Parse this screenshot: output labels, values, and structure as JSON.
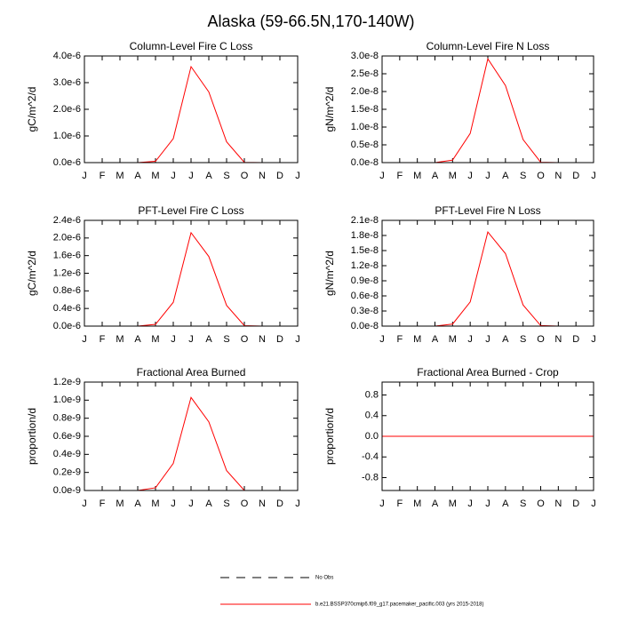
{
  "title": "Alaska (59-66.5N,170-140W)",
  "legend": [
    {
      "label": "No Obs",
      "color": "#000000",
      "dashed": true
    },
    {
      "label": "b.e21.BSSP370cmip6.f09_g17.pacemaker_pacific.003 (yrs 2015-2018)",
      "color": "#ff0000",
      "dashed": false
    }
  ],
  "chart_data": [
    {
      "type": "line",
      "title": "Column-Level Fire C Loss",
      "ylabel": "gC/m^2/d",
      "color": "#ff0000",
      "categories": [
        "J",
        "F",
        "M",
        "A",
        "M",
        "J",
        "J",
        "A",
        "S",
        "O",
        "N",
        "D",
        "J"
      ],
      "values": [
        0,
        0,
        0,
        0,
        5e-08,
        9e-07,
        3.6e-06,
        2.65e-06,
        7.8e-07,
        1e-08,
        0,
        0,
        0
      ],
      "ylim": [
        0,
        4e-06
      ],
      "yticks": [
        {
          "value": 0,
          "label": "0.0e-6"
        },
        {
          "value": 1e-06,
          "label": "1.0e-6"
        },
        {
          "value": 2e-06,
          "label": "2.0e-6"
        },
        {
          "value": 3e-06,
          "label": "3.0e-6"
        },
        {
          "value": 4e-06,
          "label": "4.0e-6"
        }
      ]
    },
    {
      "type": "line",
      "title": "Column-Level Fire N Loss",
      "ylabel": "gN/m^2/d",
      "color": "#ff0000",
      "categories": [
        "J",
        "F",
        "M",
        "A",
        "M",
        "J",
        "J",
        "A",
        "S",
        "O",
        "N",
        "D",
        "J"
      ],
      "values": [
        0,
        0,
        0,
        0,
        7e-10,
        8.2e-09,
        2.92e-08,
        2.17e-08,
        6.5e-09,
        1e-10,
        0,
        0,
        0
      ],
      "ylim": [
        0,
        3e-08
      ],
      "yticks": [
        {
          "value": 0,
          "label": "0.0e-8"
        },
        {
          "value": 5e-09,
          "label": "0.5e-8"
        },
        {
          "value": 1e-08,
          "label": "1.0e-8"
        },
        {
          "value": 1.5e-08,
          "label": "1.5e-8"
        },
        {
          "value": 2e-08,
          "label": "2.0e-8"
        },
        {
          "value": 2.5e-08,
          "label": "2.5e-8"
        },
        {
          "value": 3e-08,
          "label": "3.0e-8"
        }
      ]
    },
    {
      "type": "line",
      "title": "PFT-Level Fire C Loss",
      "ylabel": "gC/m^2/d",
      "color": "#ff0000",
      "categories": [
        "J",
        "F",
        "M",
        "A",
        "M",
        "J",
        "J",
        "A",
        "S",
        "O",
        "N",
        "D",
        "J"
      ],
      "values": [
        0,
        0,
        0,
        0,
        4e-08,
        5.4e-07,
        2.12e-06,
        1.58e-06,
        4.7e-07,
        1e-08,
        0,
        0,
        0
      ],
      "ylim": [
        0,
        2.4e-06
      ],
      "yticks": [
        {
          "value": 0,
          "label": "0.0e-6"
        },
        {
          "value": 4e-07,
          "label": "0.4e-6"
        },
        {
          "value": 8e-07,
          "label": "0.8e-6"
        },
        {
          "value": 1.2e-06,
          "label": "1.2e-6"
        },
        {
          "value": 1.6e-06,
          "label": "1.6e-6"
        },
        {
          "value": 2e-06,
          "label": "2.0e-6"
        },
        {
          "value": 2.4e-06,
          "label": "2.4e-6"
        }
      ]
    },
    {
      "type": "line",
      "title": "PFT-Level Fire N Loss",
      "ylabel": "gN/m^2/d",
      "color": "#ff0000",
      "categories": [
        "J",
        "F",
        "M",
        "A",
        "M",
        "J",
        "J",
        "A",
        "S",
        "O",
        "N",
        "D",
        "J"
      ],
      "values": [
        0,
        0,
        0,
        0,
        4e-10,
        4.8e-09,
        1.87e-08,
        1.44e-08,
        4.2e-09,
        1e-10,
        0,
        0,
        0
      ],
      "ylim": [
        0,
        2.1e-08
      ],
      "yticks": [
        {
          "value": 0,
          "label": "0.0e-8"
        },
        {
          "value": 3e-09,
          "label": "0.3e-8"
        },
        {
          "value": 6e-09,
          "label": "0.6e-8"
        },
        {
          "value": 9e-09,
          "label": "0.9e-8"
        },
        {
          "value": 1.2e-08,
          "label": "1.2e-8"
        },
        {
          "value": 1.5e-08,
          "label": "1.5e-8"
        },
        {
          "value": 1.8e-08,
          "label": "1.8e-8"
        },
        {
          "value": 2.1e-08,
          "label": "2.1e-8"
        }
      ]
    },
    {
      "type": "line",
      "title": "Fractional Area Burned",
      "ylabel": "proportion/d",
      "color": "#ff0000",
      "categories": [
        "J",
        "F",
        "M",
        "A",
        "M",
        "J",
        "J",
        "A",
        "S",
        "O",
        "N",
        "D",
        "J"
      ],
      "values": [
        0,
        0,
        0,
        0,
        3e-11,
        3e-10,
        1.03e-09,
        7.6e-10,
        2.2e-10,
        0,
        0,
        0,
        0
      ],
      "ylim": [
        0,
        1.2e-09
      ],
      "yticks": [
        {
          "value": 0,
          "label": "0.0e-9"
        },
        {
          "value": 2e-10,
          "label": "0.2e-9"
        },
        {
          "value": 4e-10,
          "label": "0.4e-9"
        },
        {
          "value": 6e-10,
          "label": "0.6e-9"
        },
        {
          "value": 8e-10,
          "label": "0.8e-9"
        },
        {
          "value": 1e-09,
          "label": "1.0e-9"
        },
        {
          "value": 1.2e-09,
          "label": "1.2e-9"
        }
      ]
    },
    {
      "type": "line",
      "title": "Fractional Area Burned - Crop",
      "ylabel": "proportion/d",
      "color": "#ff0000",
      "categories": [
        "J",
        "F",
        "M",
        "A",
        "M",
        "J",
        "J",
        "A",
        "S",
        "O",
        "N",
        "D",
        "J"
      ],
      "values": [
        0,
        0,
        0,
        0,
        0,
        0,
        0,
        0,
        0,
        0,
        0,
        0,
        0
      ],
      "ylim": [
        -1.05,
        1.05
      ],
      "yticks": [
        -0.8,
        -0.4,
        {
          "value": 0,
          "label": "0.0"
        },
        0.4,
        0.8
      ]
    }
  ]
}
